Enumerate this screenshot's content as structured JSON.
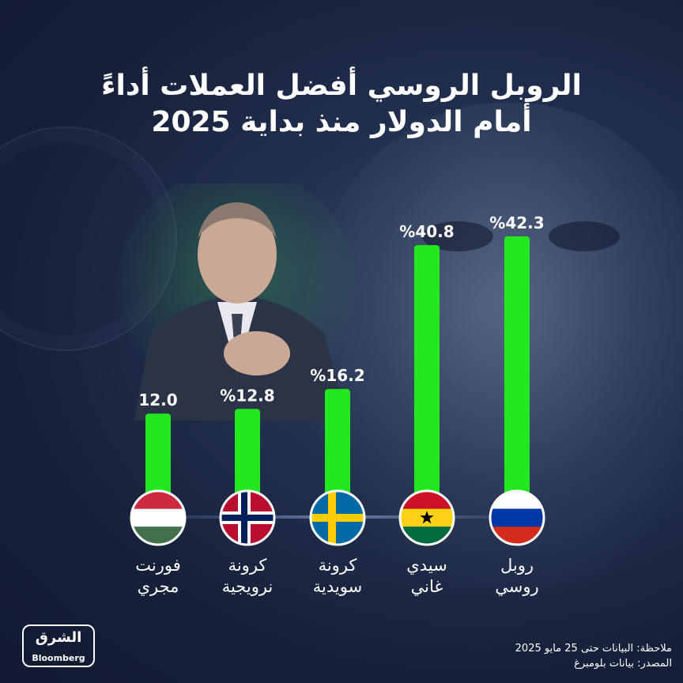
{
  "title_line1": "الروبل الروسي أفضل العملات أداءً",
  "title_line2": "أمام الدولار منذ بداية 2025",
  "chart_data": {
    "type": "bar",
    "categories": [
      {
        "line1": "فورنت",
        "line2": "مجري"
      },
      {
        "line1": "كرونة",
        "line2": "نرويجية"
      },
      {
        "line1": "كرونة",
        "line2": "سويدية"
      },
      {
        "line1": "سيدي",
        "line2": "غاني"
      },
      {
        "line1": "روبل",
        "line2": "روسي"
      }
    ],
    "values": [
      12.0,
      12.8,
      16.2,
      40.8,
      42.3
    ],
    "value_labels": [
      "12.0",
      "%12.8",
      "%16.2",
      "%40.8",
      "%42.3"
    ],
    "flags": [
      "hungary-flag",
      "norway-flag",
      "sweden-flag",
      "ghana-flag",
      "russia-flag"
    ],
    "bar_color": "#22e81e"
  },
  "note": "ملاحظة: البيانات حتى 25 مايو 2025",
  "source": "المصدر: بيانات بلومبرغ",
  "logo": {
    "arabic": "الشرق",
    "english": "Bloomberg"
  }
}
